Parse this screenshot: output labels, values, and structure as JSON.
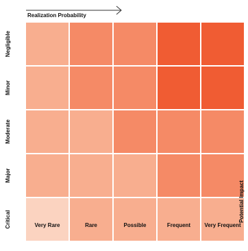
{
  "chart_data": {
    "type": "heatmap",
    "title": "",
    "xlabel": "Realization Probability",
    "ylabel": "Potential Impact",
    "x_categories": [
      "Very Rare",
      "Rare",
      "Possible",
      "Frequent",
      "Very Frequent"
    ],
    "y_categories": [
      "Negligible",
      "Minor",
      "Moderate",
      "Major",
      "Critical"
    ],
    "levels": [
      [
        2,
        3,
        3,
        5,
        5
      ],
      [
        2,
        3,
        3,
        5,
        5
      ],
      [
        2,
        2,
        3,
        3,
        3
      ],
      [
        2,
        2,
        2,
        3,
        3
      ],
      [
        1,
        2,
        2,
        2,
        2
      ]
    ],
    "colors": {
      "1": "#fbd3c0",
      "2": "#f8ae8f",
      "3": "#f58a66",
      "5": "#f05c33"
    },
    "legend": "none",
    "grid": false
  }
}
